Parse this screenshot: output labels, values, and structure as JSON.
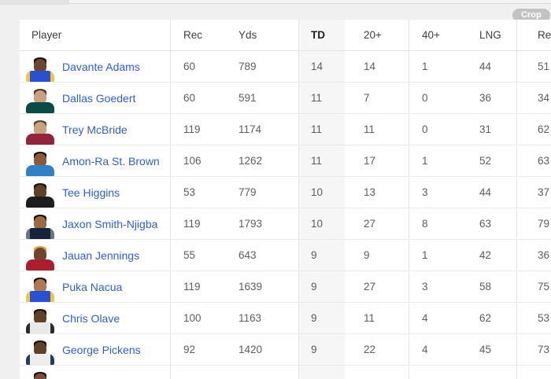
{
  "page": {
    "crop_button": "Crop"
  },
  "colors": {
    "accent_link": "#2e5fd7",
    "header_text": "#3f3f3f",
    "value_text": "#5d5d5d",
    "sorted_column_bg": "#f6f6f6",
    "page_bg": "#f0f0f0",
    "crop_button_bg": "#c3c3c3"
  },
  "table": {
    "columns": [
      {
        "key": "player",
        "label": "Player"
      },
      {
        "key": "rec",
        "label": "Rec"
      },
      {
        "key": "yds",
        "label": "Yds"
      },
      {
        "key": "td",
        "label": "TD",
        "sorted": true
      },
      {
        "key": "plus20",
        "label": "20+"
      },
      {
        "key": "plus40",
        "label": "40+"
      },
      {
        "key": "lng",
        "label": "LNG"
      },
      {
        "key": "re",
        "label": "Re"
      }
    ],
    "rows": [
      {
        "player": "Davante Adams",
        "rec": "60",
        "yds": "789",
        "td": "14",
        "plus20": "14",
        "plus40": "1",
        "lng": "44",
        "re": "51",
        "avatar": {
          "skin": "#6e4630",
          "hair": "#17100b",
          "jersey": "#2a50cf",
          "accent": "#f2c53d"
        }
      },
      {
        "player": "Dallas Goedert",
        "rec": "60",
        "yds": "591",
        "td": "11",
        "plus20": "7",
        "plus40": "0",
        "lng": "36",
        "re": "34",
        "avatar": {
          "skin": "#caa07e",
          "hair": "#4a3828",
          "jersey": "#0a4c44",
          "accent": "#0a4c44"
        }
      },
      {
        "player": "Trey McBride",
        "rec": "119",
        "yds": "1174",
        "td": "11",
        "plus20": "11",
        "plus40": "0",
        "lng": "31",
        "re": "62",
        "avatar": {
          "skin": "#cba181",
          "hair": "#5a4430",
          "jersey": "#92243c",
          "accent": "#92243c"
        }
      },
      {
        "player": "Amon-Ra St. Brown",
        "rec": "106",
        "yds": "1262",
        "td": "11",
        "plus20": "17",
        "plus40": "1",
        "lng": "52",
        "re": "63",
        "avatar": {
          "skin": "#8a5a3b",
          "hair": "#17100b",
          "jersey": "#2f80c4",
          "accent": "#2f80c4"
        }
      },
      {
        "player": "Tee Higgins",
        "rec": "53",
        "yds": "779",
        "td": "10",
        "plus20": "13",
        "plus40": "3",
        "lng": "44",
        "re": "37",
        "avatar": {
          "skin": "#5f4029",
          "hair": "#17100b",
          "jersey": "#1d1d1f",
          "accent": "#1d1d1f"
        }
      },
      {
        "player": "Jaxon Smith-Njigba",
        "rec": "119",
        "yds": "1793",
        "td": "10",
        "plus20": "27",
        "plus40": "8",
        "lng": "63",
        "re": "79",
        "avatar": {
          "skin": "#9a6a45",
          "hair": "#17100b",
          "jersey": "#16233c",
          "accent": "#69767d"
        }
      },
      {
        "player": "Jauan Jennings",
        "rec": "55",
        "yds": "643",
        "td": "9",
        "plus20": "9",
        "plus40": "1",
        "lng": "42",
        "re": "36",
        "avatar": {
          "skin": "#6e4630",
          "hair": "#d9a63c",
          "jersey": "#aa1e2e",
          "accent": "#aa1e2e"
        }
      },
      {
        "player": "Puka Nacua",
        "rec": "119",
        "yds": "1639",
        "td": "9",
        "plus20": "27",
        "plus40": "3",
        "lng": "58",
        "re": "75",
        "avatar": {
          "skin": "#b07950",
          "hair": "#17100b",
          "jersey": "#2a50cf",
          "accent": "#f2c53d"
        }
      },
      {
        "player": "Chris Olave",
        "rec": "100",
        "yds": "1163",
        "td": "9",
        "plus20": "11",
        "plus40": "4",
        "lng": "62",
        "re": "53",
        "avatar": {
          "skin": "#5f4029",
          "hair": "#17100b",
          "jersey": "#e9e9ea",
          "accent": "#2b2b2b"
        }
      },
      {
        "player": "George Pickens",
        "rec": "92",
        "yds": "1420",
        "td": "9",
        "plus20": "22",
        "plus40": "4",
        "lng": "45",
        "re": "73",
        "avatar": {
          "skin": "#5f4029",
          "hair": "#17100b",
          "jersey": "#ededee",
          "accent": "#233a6b"
        }
      },
      {
        "player": "",
        "rec": "",
        "yds": "",
        "td": "",
        "plus20": "",
        "plus40": "",
        "lng": "",
        "re": "",
        "avatar": {
          "skin": "#7a4f35",
          "hair": "#17100b",
          "jersey": "#d6d6d6",
          "accent": "#d6d6d6"
        }
      }
    ]
  }
}
